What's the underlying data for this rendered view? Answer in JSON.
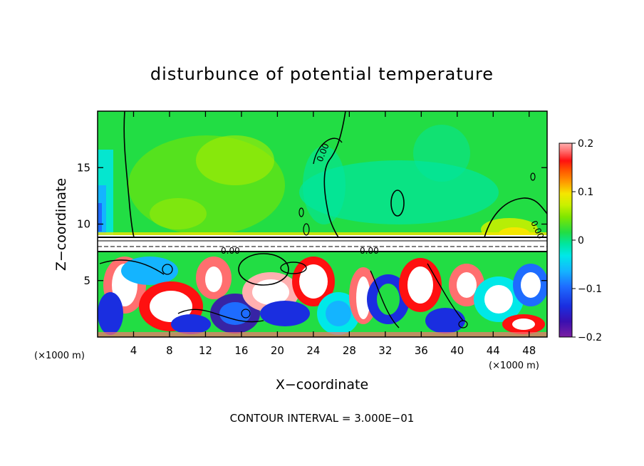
{
  "chart_data": {
    "type": "heatmap",
    "title": "disturbunce of potential temperature",
    "xlabel": "X−coordinate",
    "ylabel": "Z−coordinate",
    "x_unit": "(×1000 m)",
    "y_unit": "(×1000 m)",
    "xlim": [
      0,
      50
    ],
    "ylim": [
      0,
      20
    ],
    "x_ticks": [
      4,
      8,
      12,
      16,
      20,
      24,
      28,
      32,
      36,
      40,
      44,
      48
    ],
    "y_ticks": [
      5,
      10,
      15
    ],
    "colorbar": {
      "range": [
        -0.2,
        0.2
      ],
      "ticks": [
        "0.2",
        "0.1",
        "0",
        "−0.1",
        "−0.2"
      ],
      "colors": [
        "#7b1fa2",
        "#3a0fb0",
        "#1a2ee0",
        "#1e6cff",
        "#14b4ff",
        "#00e8e8",
        "#00e6a0",
        "#22dd44",
        "#7fe600",
        "#c8f000",
        "#f5e600",
        "#ff9a00",
        "#ff5500",
        "#ff1010",
        "#ff6f6f",
        "#ffb0b0"
      ]
    },
    "contour_labels": [
      "0.00",
      "0.00",
      "0.00",
      "0.00"
    ],
    "footer": "CONTOUR INTERVAL = 3.000E−01"
  }
}
